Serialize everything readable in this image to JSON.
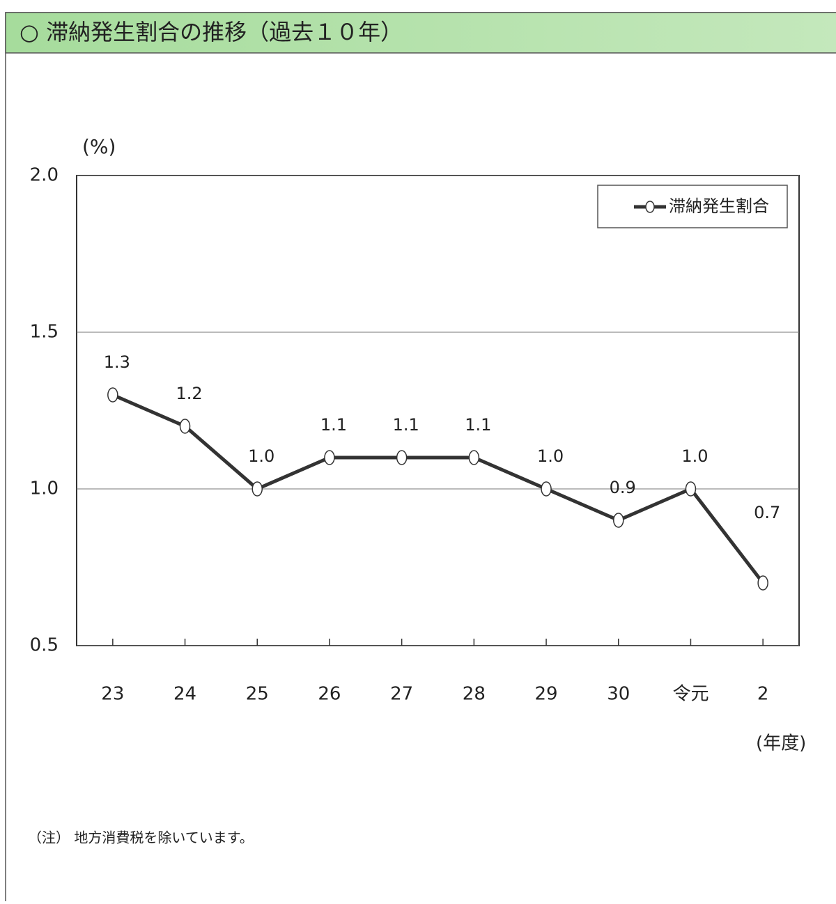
{
  "header": {
    "title": "○ 滞納発生割合の推移（過去１０年）"
  },
  "chart_data": {
    "type": "line",
    "y_unit": "(%)",
    "x_unit": "(年度)",
    "categories": [
      "23",
      "24",
      "25",
      "26",
      "27",
      "28",
      "29",
      "30",
      "令元",
      "2"
    ],
    "series": [
      {
        "name": "滞納発生割合",
        "color": "#333333",
        "values": [
          1.3,
          1.2,
          1.0,
          1.1,
          1.1,
          1.1,
          1.0,
          0.9,
          1.0,
          0.7
        ],
        "value_labels": [
          "1.3",
          "1.2",
          "1.0",
          "1.1",
          "1.1",
          "1.1",
          "1.0",
          "0.9",
          "1.0",
          "0.7"
        ]
      }
    ],
    "ylim": [
      0.5,
      2.0
    ],
    "yticks": [
      0.5,
      {
        "value": 1,
        "label": "1.0"
      },
      1.5,
      {
        "value": 2,
        "label": "2.0"
      }
    ],
    "grid": true,
    "legend": "top-right"
  },
  "note": "（注） 地方消費税を除いています。"
}
